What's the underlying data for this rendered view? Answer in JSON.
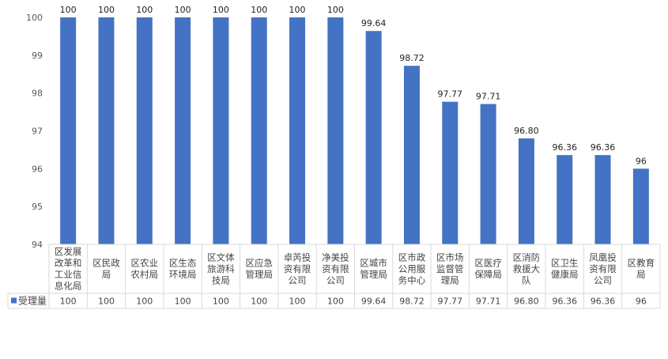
{
  "chart_data": {
    "type": "bar",
    "categories": [
      [
        "区发展",
        "改革和",
        "工业信",
        "息化局"
      ],
      [
        "区民政",
        "局"
      ],
      [
        "区农业",
        "农村局"
      ],
      [
        "区生态",
        "环境局"
      ],
      [
        "区文体",
        "旅游科",
        "技局"
      ],
      [
        "区应急",
        "管理局"
      ],
      [
        "卓芮投",
        "资有限",
        "公司"
      ],
      [
        "净美投",
        "资有限",
        "公司"
      ],
      [
        "区城市",
        "管理局"
      ],
      [
        "区市政",
        "公用服",
        "务中心"
      ],
      [
        "区市场",
        "监督管",
        "理局"
      ],
      [
        "区医疗",
        "保障局"
      ],
      [
        "区消防",
        "救援大",
        "队"
      ],
      [
        "区卫生",
        "健康局"
      ],
      [
        "凤凰投",
        "资有限",
        "公司"
      ],
      [
        "区教育",
        "局"
      ]
    ],
    "series": [
      {
        "name": "受理量",
        "values": [
          100,
          100,
          100,
          100,
          100,
          100,
          100,
          100,
          99.64,
          98.72,
          97.77,
          97.71,
          96.8,
          96.36,
          96.36,
          96
        ],
        "labels": [
          "100",
          "100",
          "100",
          "100",
          "100",
          "100",
          "100",
          "100",
          "99.64",
          "98.72",
          "97.77",
          "97.71",
          "96.80",
          "96.36",
          "96.36",
          "96"
        ]
      }
    ],
    "ylim": [
      94,
      100
    ],
    "yticks": [
      94,
      95,
      96,
      97,
      98,
      99,
      100
    ],
    "grid": false,
    "legend": "data-table-left",
    "colors": {
      "bar": "#4472C4",
      "axis": "#D9D9D9"
    }
  }
}
